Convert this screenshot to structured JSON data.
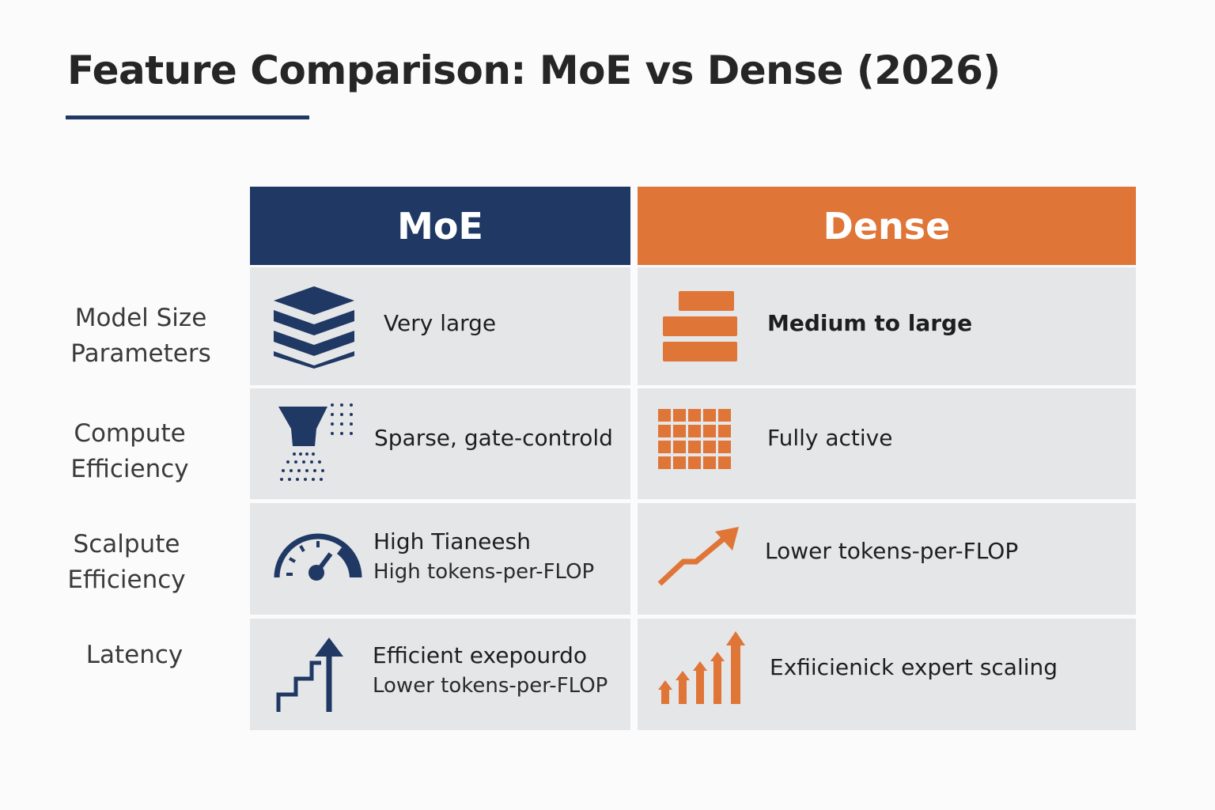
{
  "header": {
    "title": "Feature Comparison: MoE vs Dense (2026)"
  },
  "table": {
    "columns": [
      "MoE",
      "Dense"
    ],
    "rows": [
      {
        "label": [
          "Model Size",
          "Parameters"
        ],
        "cells": [
          [
            "Very large"
          ],
          [
            "Medium to large"
          ]
        ]
      },
      {
        "label": [
          "Compute",
          "Efficiency"
        ],
        "cells": [
          [
            "Sparse, gate-controld"
          ],
          [
            "Fully active"
          ]
        ]
      },
      {
        "label": [
          "Scalpute",
          "Efficiency"
        ],
        "cells": [
          [
            "High Tianeesh",
            "High tokens-per-FLOP"
          ],
          [
            "Lower tokens-per-FLOP"
          ]
        ]
      },
      {
        "label": [
          "Latency"
        ],
        "cells": [
          [
            "Efficient exepourdo",
            "Lower tokens-per-FLOP"
          ],
          [
            "Exfiicienick expert scaling"
          ]
        ]
      }
    ]
  }
}
